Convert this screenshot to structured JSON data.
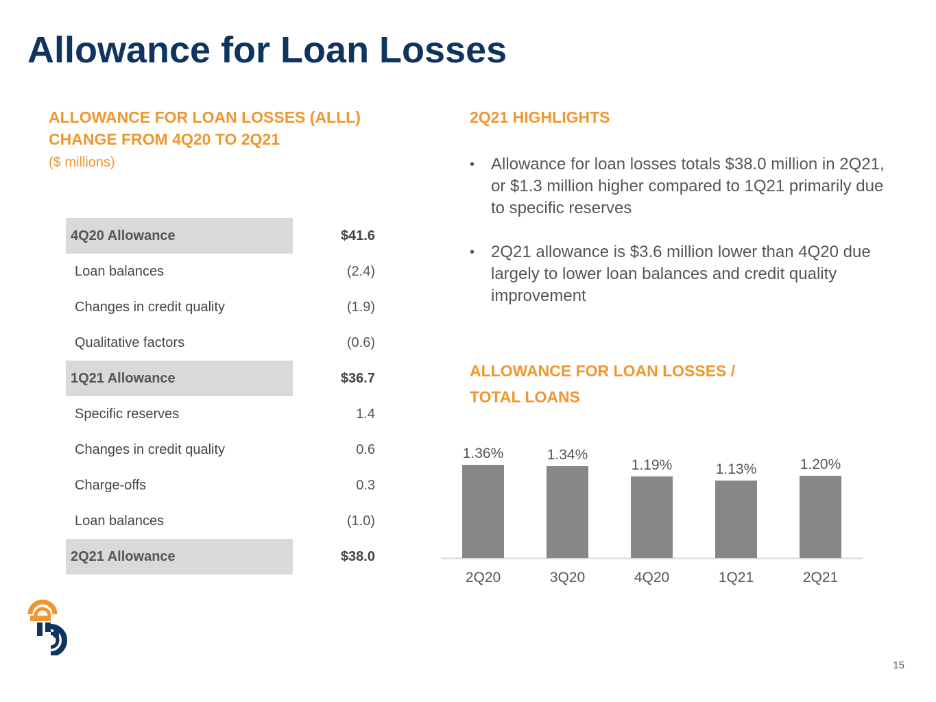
{
  "title": "Allowance for Loan Losses",
  "left": {
    "heading_line1": "ALLOWANCE FOR LOAN LOSSES (ALLL)",
    "heading_line2": "CHANGE FROM 4Q20 TO 2Q21",
    "units": "($ millions)",
    "rows": [
      {
        "label": "4Q20 Allowance",
        "value": "$41.6",
        "total": true
      },
      {
        "label": "Loan balances",
        "value": "(2.4)",
        "total": false
      },
      {
        "label": "Changes in credit quality",
        "value": "(1.9)",
        "total": false
      },
      {
        "label": "Qualitative factors",
        "value": "(0.6)",
        "total": false
      },
      {
        "label": "1Q21 Allowance",
        "value": "$36.7",
        "total": true
      },
      {
        "label": "Specific reserves",
        "value": "1.4",
        "total": false
      },
      {
        "label": "Changes in credit quality",
        "value": "0.6",
        "total": false
      },
      {
        "label": "Charge-offs",
        "value": "0.3",
        "total": false
      },
      {
        "label": "Loan balances",
        "value": "(1.0)",
        "total": false
      },
      {
        "label": "2Q21 Allowance",
        "value": "$38.0",
        "total": true
      }
    ]
  },
  "highlights": {
    "heading": "2Q21 HIGHLIGHTS",
    "bullet_symbol": "•",
    "bullets": [
      "Allowance for loan losses totals $38.0 million in 2Q21, or $1.3 million higher compared to 1Q21 primarily due to specific reserves",
      "2Q21 allowance is $3.6 million lower than 4Q20 due largely to lower loan balances and credit quality improvement"
    ]
  },
  "chart_heading": {
    "line1": "ALLOWANCE FOR LOAN LOSSES /",
    "line2": "TOTAL LOANS"
  },
  "chart_data": {
    "type": "bar",
    "title": "",
    "categories": [
      "2Q20",
      "3Q20",
      "4Q20",
      "1Q21",
      "2Q21"
    ],
    "values": [
      1.36,
      1.34,
      1.19,
      1.13,
      1.2
    ],
    "labels": [
      "1.36%",
      "1.34%",
      "1.19%",
      "1.13%",
      "1.20%"
    ],
    "ylim": [
      0,
      1.5
    ],
    "bar_color": "#878787",
    "grid": false
  },
  "page_number": "15",
  "colors": {
    "title": "#0f3460",
    "accent": "#ef962d",
    "total_row_bg": "#d9d9d9"
  },
  "logo": {
    "icon": "company-logo-icon"
  }
}
